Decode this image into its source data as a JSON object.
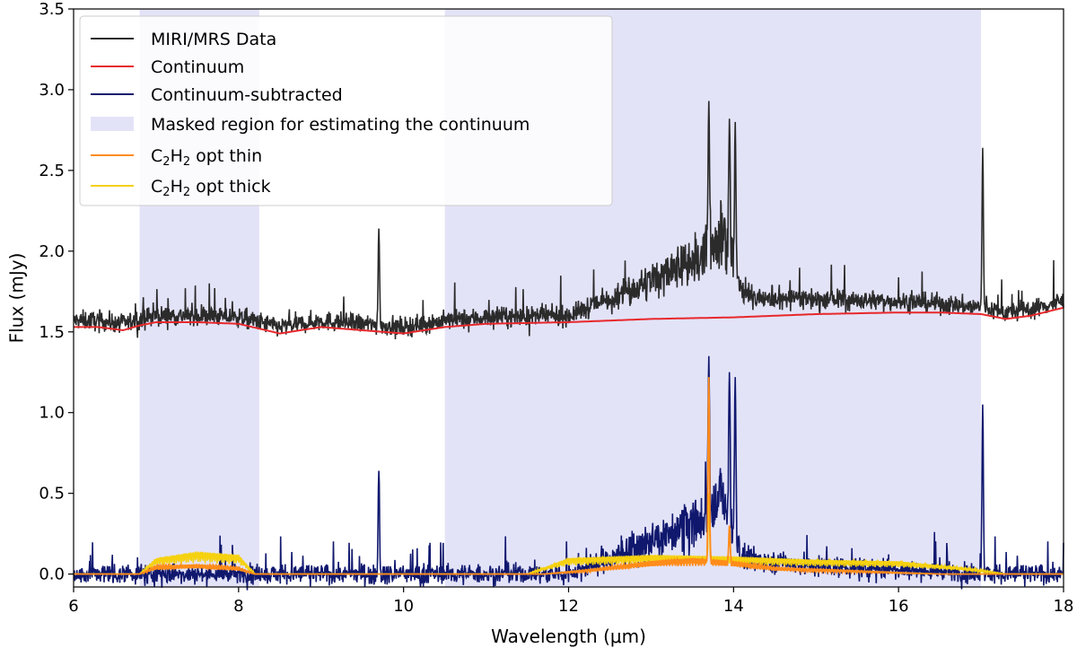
{
  "chart_data": {
    "type": "line",
    "title": "",
    "xlabel": "Wavelength (μm)",
    "ylabel": "Flux (mJy)",
    "xlim": [
      6,
      18
    ],
    "ylim": [
      -0.08,
      3.5
    ],
    "xticks": [
      "6",
      "8",
      "10",
      "12",
      "14",
      "16",
      "18"
    ],
    "yticks": [
      "0.0",
      "0.5",
      "1.0",
      "1.5",
      "2.0",
      "2.5",
      "3.0",
      "3.5"
    ],
    "grid": false,
    "legend_position": "top-left",
    "masked_regions": [
      [
        6.8,
        8.25
      ],
      [
        10.5,
        17.0
      ]
    ],
    "series": [
      {
        "name": "MIRI/MRS Data",
        "color": "#2b2b2b",
        "description": "noisy spectrum around continuum (~0.1 mJy scatter)",
        "baseline_offset": 0.04,
        "peaks": [
          [
            9.7,
            2.14
          ],
          [
            13.7,
            2.93
          ],
          [
            13.95,
            2.82
          ],
          [
            14.02,
            2.8
          ],
          [
            17.02,
            2.64
          ]
        ],
        "bump": [
          [
            12.0,
            0.0
          ],
          [
            12.5,
            0.1
          ],
          [
            13.0,
            0.2
          ],
          [
            13.5,
            0.3
          ],
          [
            13.9,
            0.5
          ],
          [
            14.1,
            0.1
          ],
          [
            15.0,
            0.05
          ],
          [
            16.0,
            0.03
          ],
          [
            17.0,
            0.0
          ]
        ]
      },
      {
        "name": "Continuum",
        "color": "#e8282b",
        "x": [
          6.0,
          6.3,
          6.6,
          6.8,
          7.0,
          7.5,
          8.0,
          8.5,
          9.0,
          9.5,
          10.0,
          10.5,
          11.0,
          12.0,
          13.0,
          14.0,
          15.0,
          16.0,
          16.5,
          17.0,
          17.3,
          17.6,
          18.0
        ],
        "values": [
          1.53,
          1.53,
          1.51,
          1.54,
          1.56,
          1.56,
          1.55,
          1.49,
          1.53,
          1.51,
          1.49,
          1.53,
          1.55,
          1.56,
          1.58,
          1.59,
          1.61,
          1.62,
          1.62,
          1.61,
          1.58,
          1.6,
          1.65
        ]
      },
      {
        "name": "Continuum-subtracted",
        "color": "#10186e",
        "description": "noisy residual around zero (~0.1 mJy scatter)",
        "peaks": [
          [
            9.7,
            0.64
          ],
          [
            13.7,
            1.35
          ],
          [
            13.95,
            1.25
          ],
          [
            14.02,
            1.22
          ],
          [
            17.02,
            1.05
          ]
        ]
      },
      {
        "name": "Masked region for estimating the continuum",
        "color": "#e6e6f8",
        "kind": "span"
      },
      {
        "name": "C₂H₂ opt thin",
        "color": "#ff8c1a",
        "envelope": [
          [
            6.8,
            0.0
          ],
          [
            7.0,
            0.05
          ],
          [
            7.5,
            0.06
          ],
          [
            8.0,
            0.04
          ],
          [
            8.2,
            0.0
          ],
          [
            11.7,
            0.0
          ],
          [
            12.3,
            0.03
          ],
          [
            13.0,
            0.08
          ],
          [
            13.5,
            0.1
          ],
          [
            14.0,
            0.08
          ],
          [
            14.5,
            0.04
          ],
          [
            15.5,
            0.02
          ],
          [
            16.5,
            0.0
          ]
        ],
        "peaks": [
          [
            13.7,
            1.22
          ],
          [
            13.95,
            0.3
          ]
        ]
      },
      {
        "name": "C₂H₂ opt thick",
        "color": "#f5d10f",
        "envelope": [
          [
            6.8,
            0.0
          ],
          [
            7.0,
            0.1
          ],
          [
            7.5,
            0.14
          ],
          [
            8.0,
            0.12
          ],
          [
            8.2,
            0.0
          ],
          [
            11.5,
            0.0
          ],
          [
            12.0,
            0.1
          ],
          [
            13.0,
            0.12
          ],
          [
            14.0,
            0.11
          ],
          [
            15.0,
            0.09
          ],
          [
            16.0,
            0.08
          ],
          [
            16.8,
            0.04
          ],
          [
            17.3,
            0.0
          ]
        ],
        "peaks": [
          [
            13.7,
            0.5
          ]
        ]
      }
    ],
    "legend_labels": {
      "miri_mrs_data": "MIRI/MRS Data",
      "continuum": "Continuum",
      "continuum_subtracted": "Continuum-subtracted",
      "masked_region": "Masked region for estimating the continuum",
      "c2h2_thin_prefix": "C",
      "c2h2_thin_sub1": "2",
      "c2h2_thin_mid": "H",
      "c2h2_thin_sub2": "2",
      "c2h2_thin_suffix": " opt thin",
      "c2h2_thick_prefix": "C",
      "c2h2_thick_sub1": "2",
      "c2h2_thick_mid": "H",
      "c2h2_thick_sub2": "2",
      "c2h2_thick_suffix": " opt thick"
    }
  }
}
